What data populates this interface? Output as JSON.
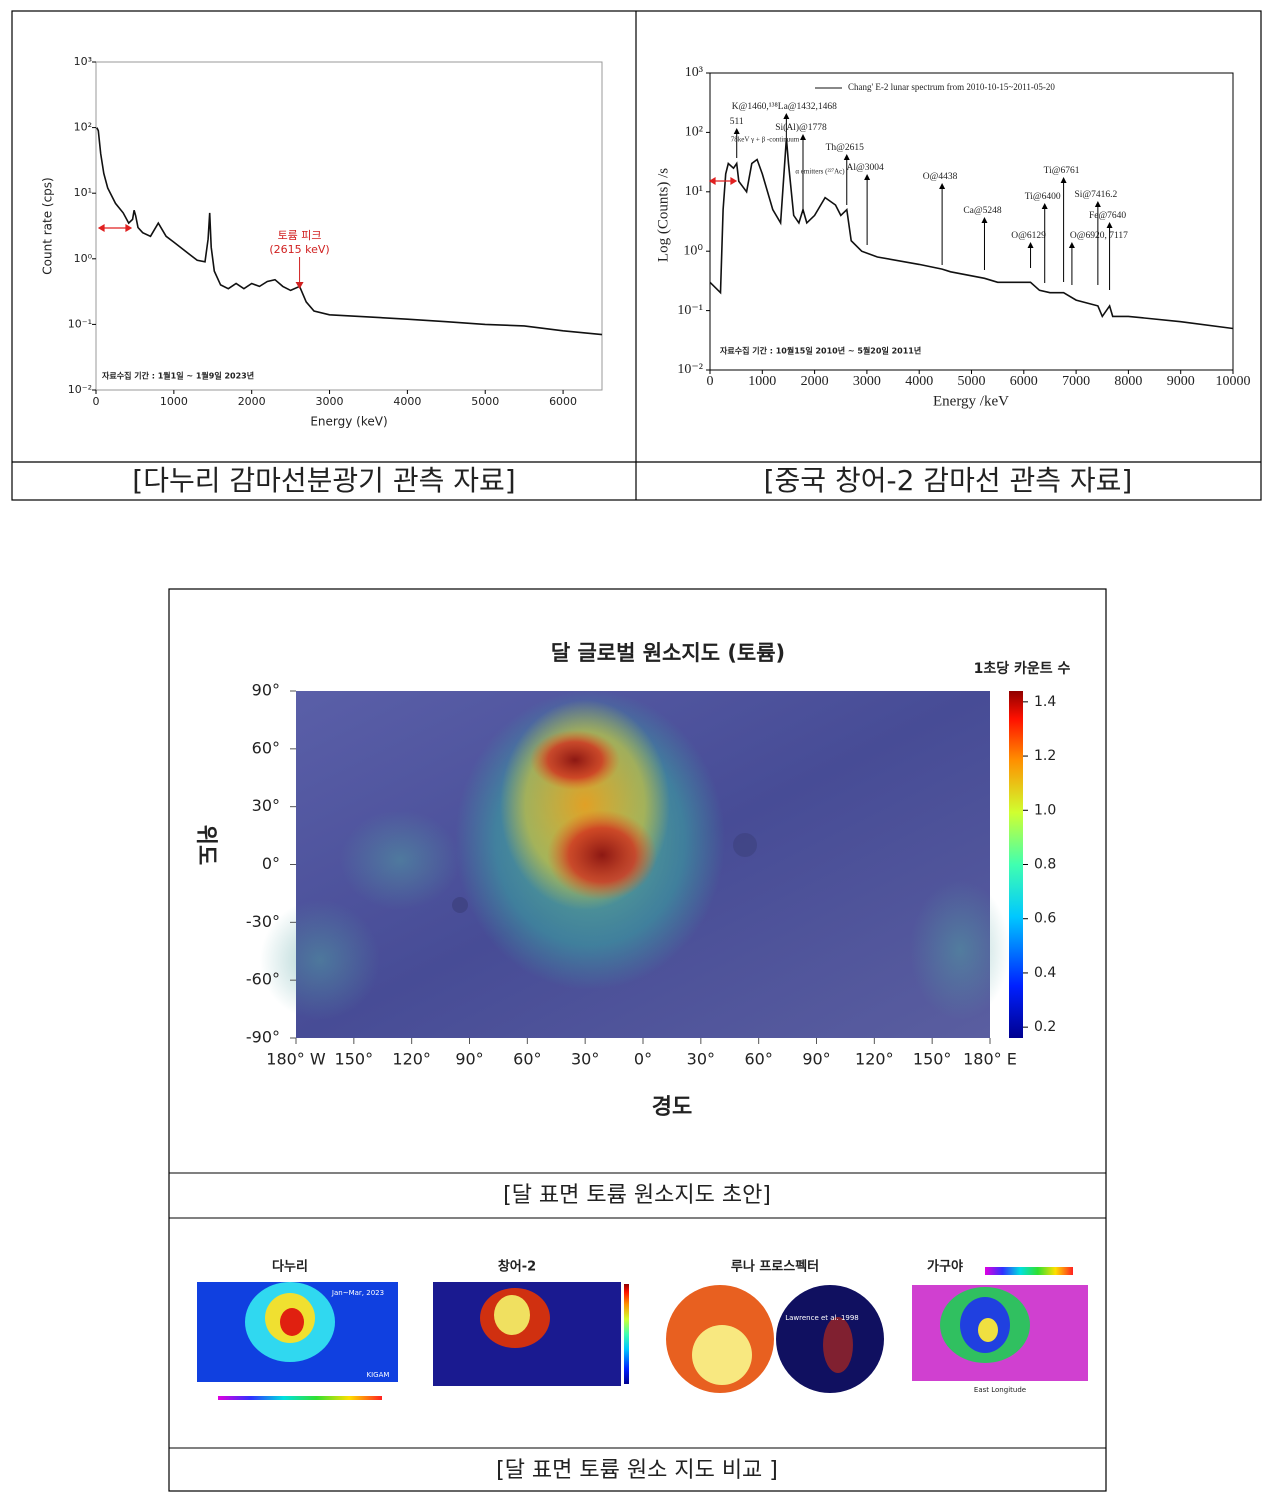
{
  "chart_data": [
    {
      "type": "line",
      "x_label": "Energy (keV)",
      "y_label": "Count rate (cps)",
      "log_y": true,
      "color": "#111111",
      "xlim": [
        0,
        6500
      ],
      "xticks": [
        0,
        1000,
        2000,
        3000,
        4000,
        5000,
        6000
      ],
      "ylim": [
        0.01,
        1000
      ],
      "yticks": [
        {
          "value": 0.01,
          "label": "10⁻²"
        },
        {
          "value": 0.1,
          "label": "10⁻¹"
        },
        {
          "value": 1,
          "label": "10⁰"
        },
        {
          "value": 10,
          "label": "10¹"
        },
        {
          "value": 100,
          "label": "10²"
        },
        {
          "value": 1000,
          "label": "10³"
        }
      ],
      "x": [
        10,
        30,
        60,
        100,
        150,
        250,
        350,
        420,
        470,
        490,
        510,
        540,
        600,
        700,
        800,
        900,
        1000,
        1150,
        1300,
        1400,
        1440,
        1460,
        1480,
        1520,
        1600,
        1700,
        1800,
        1900,
        2000,
        2100,
        2200,
        2300,
        2400,
        2500,
        2615,
        2700,
        2800,
        3000,
        3500,
        4000,
        4500,
        5000,
        5500,
        6000,
        6500
      ],
      "values": [
        100,
        90,
        40,
        20,
        12,
        7,
        5,
        3.5,
        4,
        5.5,
        4.5,
        3,
        2.5,
        2.2,
        3.5,
        2.2,
        1.8,
        1.3,
        0.95,
        0.9,
        2,
        5,
        1.5,
        0.65,
        0.4,
        0.35,
        0.42,
        0.35,
        0.42,
        0.38,
        0.45,
        0.48,
        0.38,
        0.33,
        0.38,
        0.22,
        0.16,
        0.14,
        0.13,
        0.12,
        0.11,
        0.1,
        0.095,
        0.08,
        0.07
      ],
      "annotation": {
        "lines": [
          "토륨 피크",
          "(2615 keV)"
        ],
        "x": 2615
      },
      "note": "자료수집 기간 : 1월1일 ~ 1월9일 2023년",
      "caption": "[다누리 감마선분광기 관측 자료]"
    },
    {
      "type": "line",
      "x_label": "Energy /keV",
      "y_label": "Log (Counts) /s",
      "log_y": true,
      "color": "#111111",
      "legend": "Chang' E-2 lunar spectrum from 2010-10-15~2011-05-20",
      "xlim": [
        0,
        10000
      ],
      "xticks": [
        0,
        1000,
        2000,
        3000,
        4000,
        5000,
        6000,
        7000,
        8000,
        9000,
        10000
      ],
      "ylim": [
        0.01,
        1000
      ],
      "yticks": [
        {
          "value": 0.01,
          "label": "10⁻²"
        },
        {
          "value": 0.1,
          "label": "10⁻¹"
        },
        {
          "value": 1,
          "label": "10⁰"
        },
        {
          "value": 10,
          "label": "10¹"
        },
        {
          "value": 100,
          "label": "10²"
        },
        {
          "value": 1000,
          "label": "10³"
        }
      ],
      "x": [
        0,
        200,
        250,
        300,
        350,
        450,
        511,
        550,
        700,
        800,
        900,
        1000,
        1200,
        1350,
        1460,
        1500,
        1600,
        1700,
        1778,
        1850,
        2000,
        2200,
        2400,
        2500,
        2615,
        2700,
        2900,
        3200,
        4000,
        4438,
        4600,
        5248,
        5500,
        6129,
        6300,
        6500,
        6761,
        7000,
        7416,
        7500,
        7640,
        7700,
        8000,
        9000,
        10000
      ],
      "values": [
        0.3,
        0.2,
        5,
        20,
        30,
        25,
        30,
        15,
        10,
        30,
        35,
        20,
        5,
        3,
        80,
        30,
        4,
        3,
        5,
        3,
        4,
        8,
        6,
        4,
        5,
        1.5,
        1,
        0.8,
        0.6,
        0.5,
        0.45,
        0.35,
        0.3,
        0.3,
        0.22,
        0.2,
        0.2,
        0.15,
        0.12,
        0.08,
        0.12,
        0.08,
        0.08,
        0.065,
        0.05
      ],
      "annotations": [
        {
          "text": "511",
          "x": 511
        },
        {
          "text": "K@1460,¹³⁸La@1432,1468",
          "x": 1460
        },
        {
          "text": "Si(Al)@1778",
          "x": 1778
        },
        {
          "text": "Th@2615",
          "x": 2615
        },
        {
          "text": "Al@3004",
          "x": 3004
        },
        {
          "text": "O@4438",
          "x": 4438
        },
        {
          "text": "Ca@5248",
          "x": 5248
        },
        {
          "text": "O@6129",
          "x": 6129
        },
        {
          "text": "Ti@6400",
          "x": 6400
        },
        {
          "text": "Ti@6761",
          "x": 6761
        },
        {
          "text": "O@6920, 7117",
          "x": 6920
        },
        {
          "text": "Si@7416.2",
          "x": 7416.2
        },
        {
          "text": "Fe@7640",
          "x": 7640
        }
      ],
      "extra_labels": [
        "78keV γ + β -continuum",
        "α emitters (²²⁷Ac)"
      ],
      "note": "자료수집 기간 : 10월15일 2010년 ~ 5월20일 2011년",
      "caption": "[중국 창어-2 감마선 관측 자료]"
    }
  ],
  "map": {
    "title": "달 글로벌 원소지도 (토륨)",
    "colorbar_title": "1초당 카운트 수",
    "y_label": "위도",
    "x_label": "경도",
    "lat_ticks": [
      {
        "value": 90,
        "label": "90°"
      },
      {
        "value": 60,
        "label": "60°"
      },
      {
        "value": 30,
        "label": "30°"
      },
      {
        "value": 0,
        "label": "0°"
      },
      {
        "value": -30,
        "label": "-30°"
      },
      {
        "value": -60,
        "label": "-60°"
      },
      {
        "value": -90,
        "label": "-90°"
      }
    ],
    "lon_ticks": [
      {
        "value": -180,
        "label": "180° W"
      },
      {
        "value": -150,
        "label": "150°"
      },
      {
        "value": -120,
        "label": "120°"
      },
      {
        "value": -90,
        "label": "90°"
      },
      {
        "value": -60,
        "label": "60°"
      },
      {
        "value": -30,
        "label": "30°"
      },
      {
        "value": 0,
        "label": "0°"
      },
      {
        "value": 30,
        "label": "30°"
      },
      {
        "value": 60,
        "label": "60°"
      },
      {
        "value": 90,
        "label": "90°"
      },
      {
        "value": 120,
        "label": "120°"
      },
      {
        "value": 150,
        "label": "150°"
      },
      {
        "value": 180,
        "label": "180° E"
      }
    ],
    "colorbar_lim": [
      0.16,
      1.44
    ],
    "colorbar_ticks": [
      0.2,
      0.4,
      0.6,
      0.8,
      {
        "value": 1,
        "label": "1.0"
      },
      1.2,
      1.4
    ],
    "caption": "[달 표면 토륨 원소지도 초안]"
  },
  "comparison": {
    "panels": [
      {
        "title": "다누리",
        "labels": [
          "Jan~Mar, 2023",
          "KIGAM"
        ]
      },
      {
        "title": "창어-2"
      },
      {
        "title": "루나 프로스펙터",
        "labels": [
          "Lawrence et al. 1998"
        ]
      },
      {
        "title": "가구야",
        "labels": [
          "East Longitude"
        ]
      }
    ],
    "caption": "[달 표면 토륨 원소 지도 비교 ]"
  }
}
